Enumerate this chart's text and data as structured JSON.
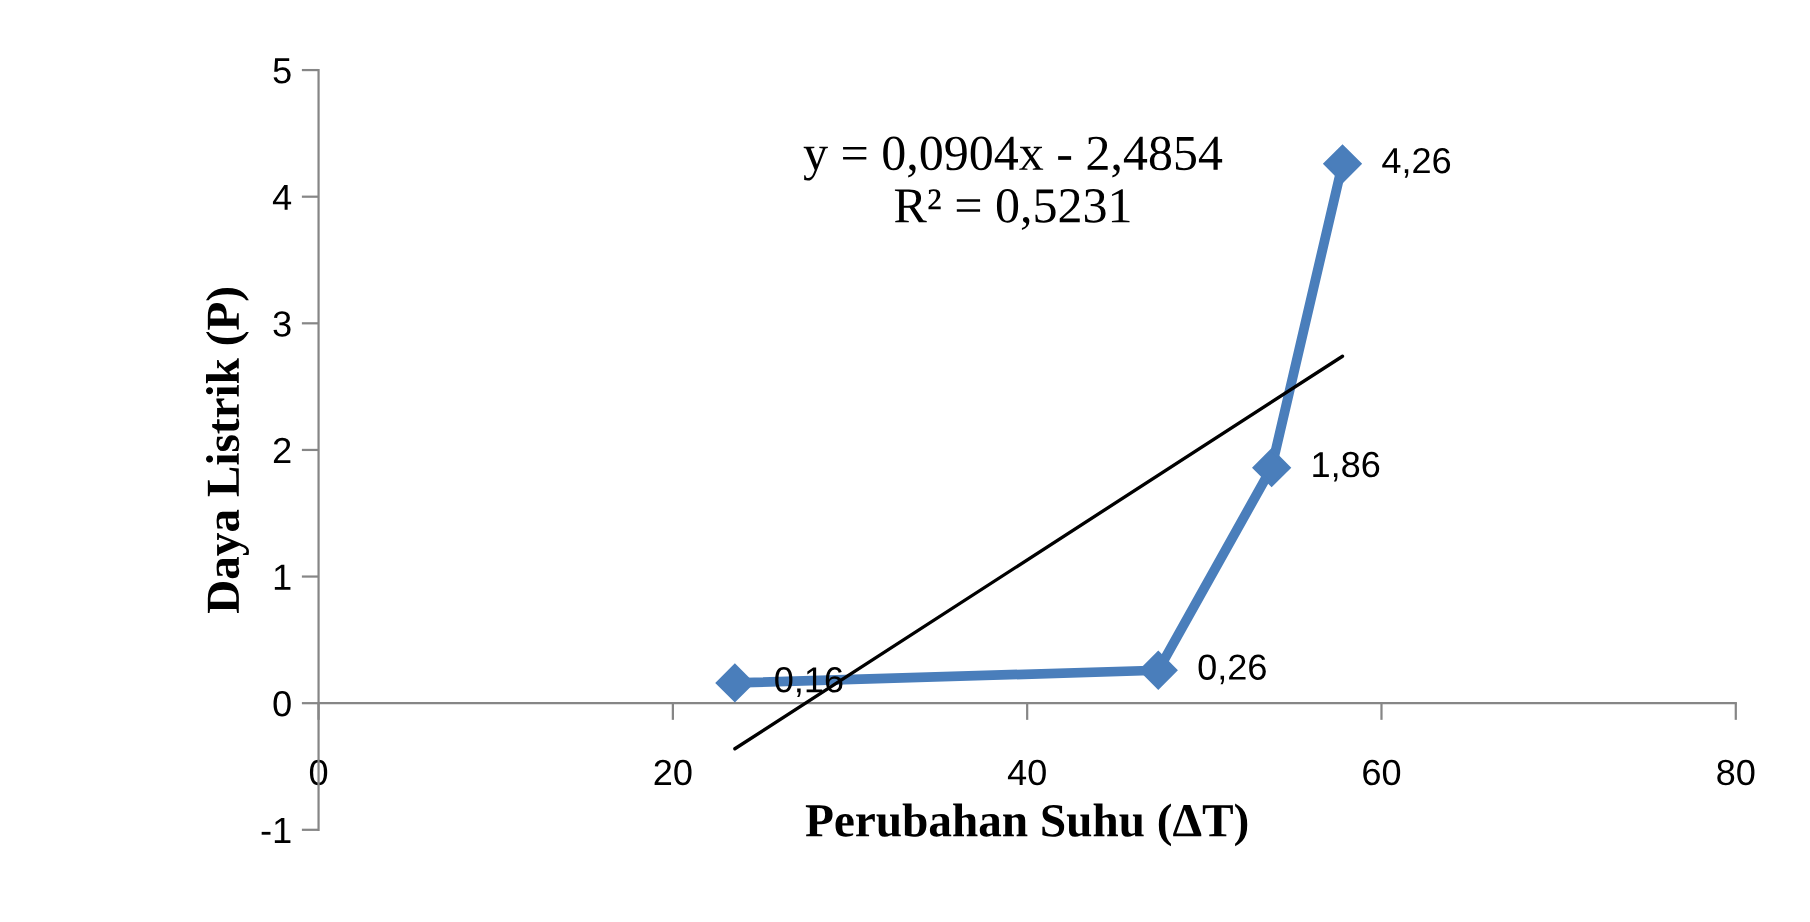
{
  "chart_data": {
    "type": "line",
    "xlabel": "Perubahan Suhu (ΔT)",
    "ylabel": "Daya Listrik (P)",
    "xlim": [
      0,
      80
    ],
    "xticks": [
      0,
      20,
      40,
      60,
      80
    ],
    "ylim": [
      -1,
      5
    ],
    "yticks": [
      -1,
      0,
      1,
      2,
      3,
      4,
      5
    ],
    "grid": false,
    "legend": false,
    "series": [
      {
        "color": "#4a7ebb",
        "x": [
          23.5,
          47.4,
          53.8,
          57.8
        ],
        "values": [
          0.16,
          0.26,
          1.86,
          4.26
        ],
        "marker": "diamond",
        "line_style": "solid",
        "value_labels": [
          "0,16",
          "0,26",
          "1,86",
          "4,26"
        ]
      },
      {
        "type": "line",
        "color": "#000000",
        "x": [
          23.5,
          57.8
        ],
        "values": [
          -0.36,
          2.74
        ],
        "marker": "none",
        "line_style": "solid"
      }
    ],
    "annotations": [
      "y = 0,0904x - 2,4854\nR² = 0,5231"
    ]
  }
}
